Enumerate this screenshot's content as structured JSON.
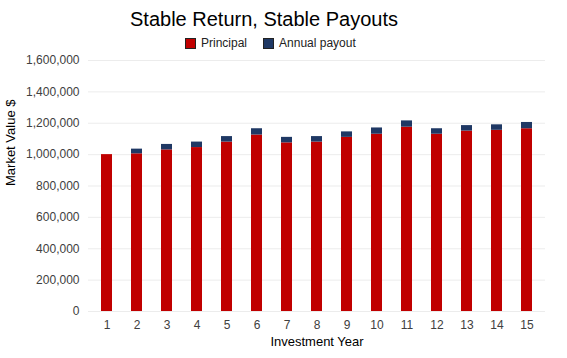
{
  "chart_data": {
    "type": "bar",
    "title": "Stable Return, Stable Payouts",
    "x_label": "Investment Year",
    "y_label": "Market Value $",
    "categories": [
      "1",
      "2",
      "3",
      "4",
      "5",
      "6",
      "7",
      "8",
      "9",
      "10",
      "11",
      "12",
      "13",
      "14",
      "15"
    ],
    "series": [
      {
        "name": "Principal",
        "color": "#c00000",
        "values": [
          1000000,
          1005000,
          1030000,
          1045000,
          1080000,
          1125000,
          1075000,
          1080000,
          1110000,
          1130000,
          1175000,
          1130000,
          1150000,
          1155000,
          1165000
        ]
      },
      {
        "name": "Annual payout",
        "color": "#1f3864",
        "values": [
          0,
          30000,
          35000,
          35000,
          35000,
          40000,
          35000,
          35000,
          35000,
          40000,
          40000,
          35000,
          35000,
          35000,
          40000
        ]
      }
    ],
    "ylim": [
      0,
      1600000
    ],
    "yticks": [
      0,
      {
        "value": 200000,
        "label": "200,000"
      },
      {
        "value": 400000,
        "label": "400,000"
      },
      {
        "value": 600000,
        "label": "600,000"
      },
      {
        "value": 800000,
        "label": "800,000"
      },
      {
        "value": 1000000,
        "label": "1,000,000"
      },
      {
        "value": 1200000,
        "label": "1,200,000"
      },
      {
        "value": 1400000,
        "label": "1,400,000"
      },
      {
        "value": 1600000,
        "label": "1,600,000"
      }
    ],
    "stacked": true,
    "grid": true,
    "legend": "top"
  }
}
